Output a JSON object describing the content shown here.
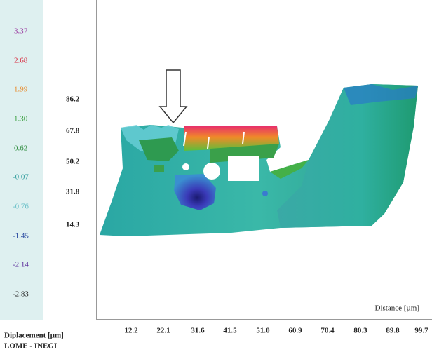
{
  "colorbar": {
    "labels": [
      "3.37",
      "2.68",
      "1.99",
      "1.30",
      "0.62",
      "-0.07",
      "-0.76",
      "-1.45",
      "-2.14",
      "-2.83"
    ]
  },
  "y_axis": {
    "labels": [
      "86.2",
      "67.8",
      "50.2",
      "31.8",
      "14.3"
    ]
  },
  "x_axis": {
    "title": "Distance [µm]",
    "labels": [
      "12.2",
      "22.1",
      "31.6",
      "41.5",
      "51.0",
      "60.9",
      "70.4",
      "80.3",
      "89.8",
      "99.7"
    ]
  },
  "footer": {
    "quantity": "Diplacement [µm]",
    "source": "LOME - INEGI"
  }
}
